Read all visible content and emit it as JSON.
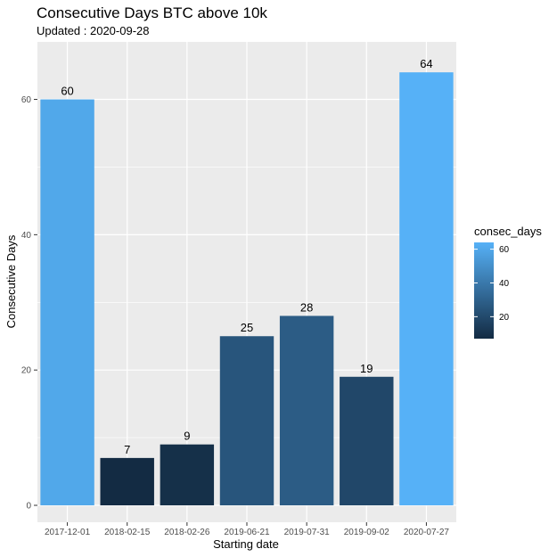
{
  "chart_data": {
    "type": "bar",
    "title": "Consecutive Days BTC above 10k",
    "subtitle": "Updated :  2020-09-28",
    "xlabel": "Starting date",
    "ylabel": "Consecutive Days",
    "categories": [
      "2017-12-01",
      "2018-02-15",
      "2018-02-26",
      "2019-06-21",
      "2019-07-31",
      "2019-09-02",
      "2020-07-27"
    ],
    "values": [
      60,
      7,
      9,
      25,
      28,
      19,
      64
    ],
    "data_labels": [
      "60",
      "7",
      "9",
      "25",
      "28",
      "19",
      "64"
    ],
    "ylim": [
      -2.5,
      68.5
    ],
    "yticks": [
      0,
      20,
      40,
      60
    ],
    "ytick_labels": [
      "0",
      "20",
      "40",
      "60"
    ],
    "grid": true,
    "panel_color": "#EBEBEB",
    "legend": {
      "title": "consec_days",
      "position": "right",
      "ticks": [
        20,
        40,
        60
      ],
      "tick_labels": [
        "20",
        "40",
        "60"
      ],
      "range": [
        7,
        64
      ],
      "color_low": "#132B43",
      "color_high": "#56B1F7"
    }
  }
}
